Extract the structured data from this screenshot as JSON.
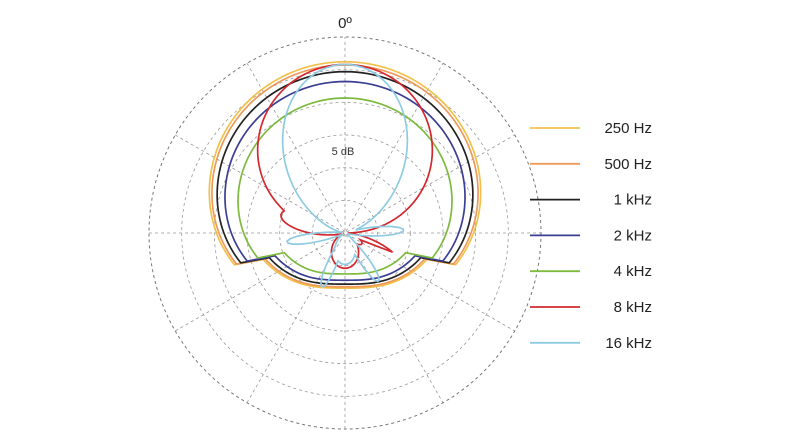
{
  "chart_data": {
    "type": "polar",
    "title": "",
    "angle_label": "0º",
    "radial_tick_label": "5 dB",
    "grid": true,
    "grid_style": "dashed",
    "radial_rings": 6,
    "angular_divisions_deg": 30,
    "legend_position": "right",
    "series": [
      {
        "name": "250 Hz",
        "color": "#f2c14b",
        "type": "cardioid",
        "value": 1.04
      },
      {
        "name": "500 Hz",
        "color": "#ee9a5a",
        "type": "cardioid",
        "value": 1.02
      },
      {
        "name": "1 kHz",
        "color": "#222222",
        "type": "cardioid",
        "value": 0.98
      },
      {
        "name": "2 kHz",
        "color": "#3b3e92",
        "type": "cardioid",
        "value": 0.92
      },
      {
        "name": "4 kHz",
        "color": "#7dba3f",
        "type": "cardioid",
        "value": 0.82
      },
      {
        "name": "8 kHz",
        "color": "#d3282e",
        "type": "lobed",
        "value": 0.6
      },
      {
        "name": "16 kHz",
        "color": "#8fcbe2",
        "type": "narrow",
        "value": 0.35
      }
    ]
  }
}
